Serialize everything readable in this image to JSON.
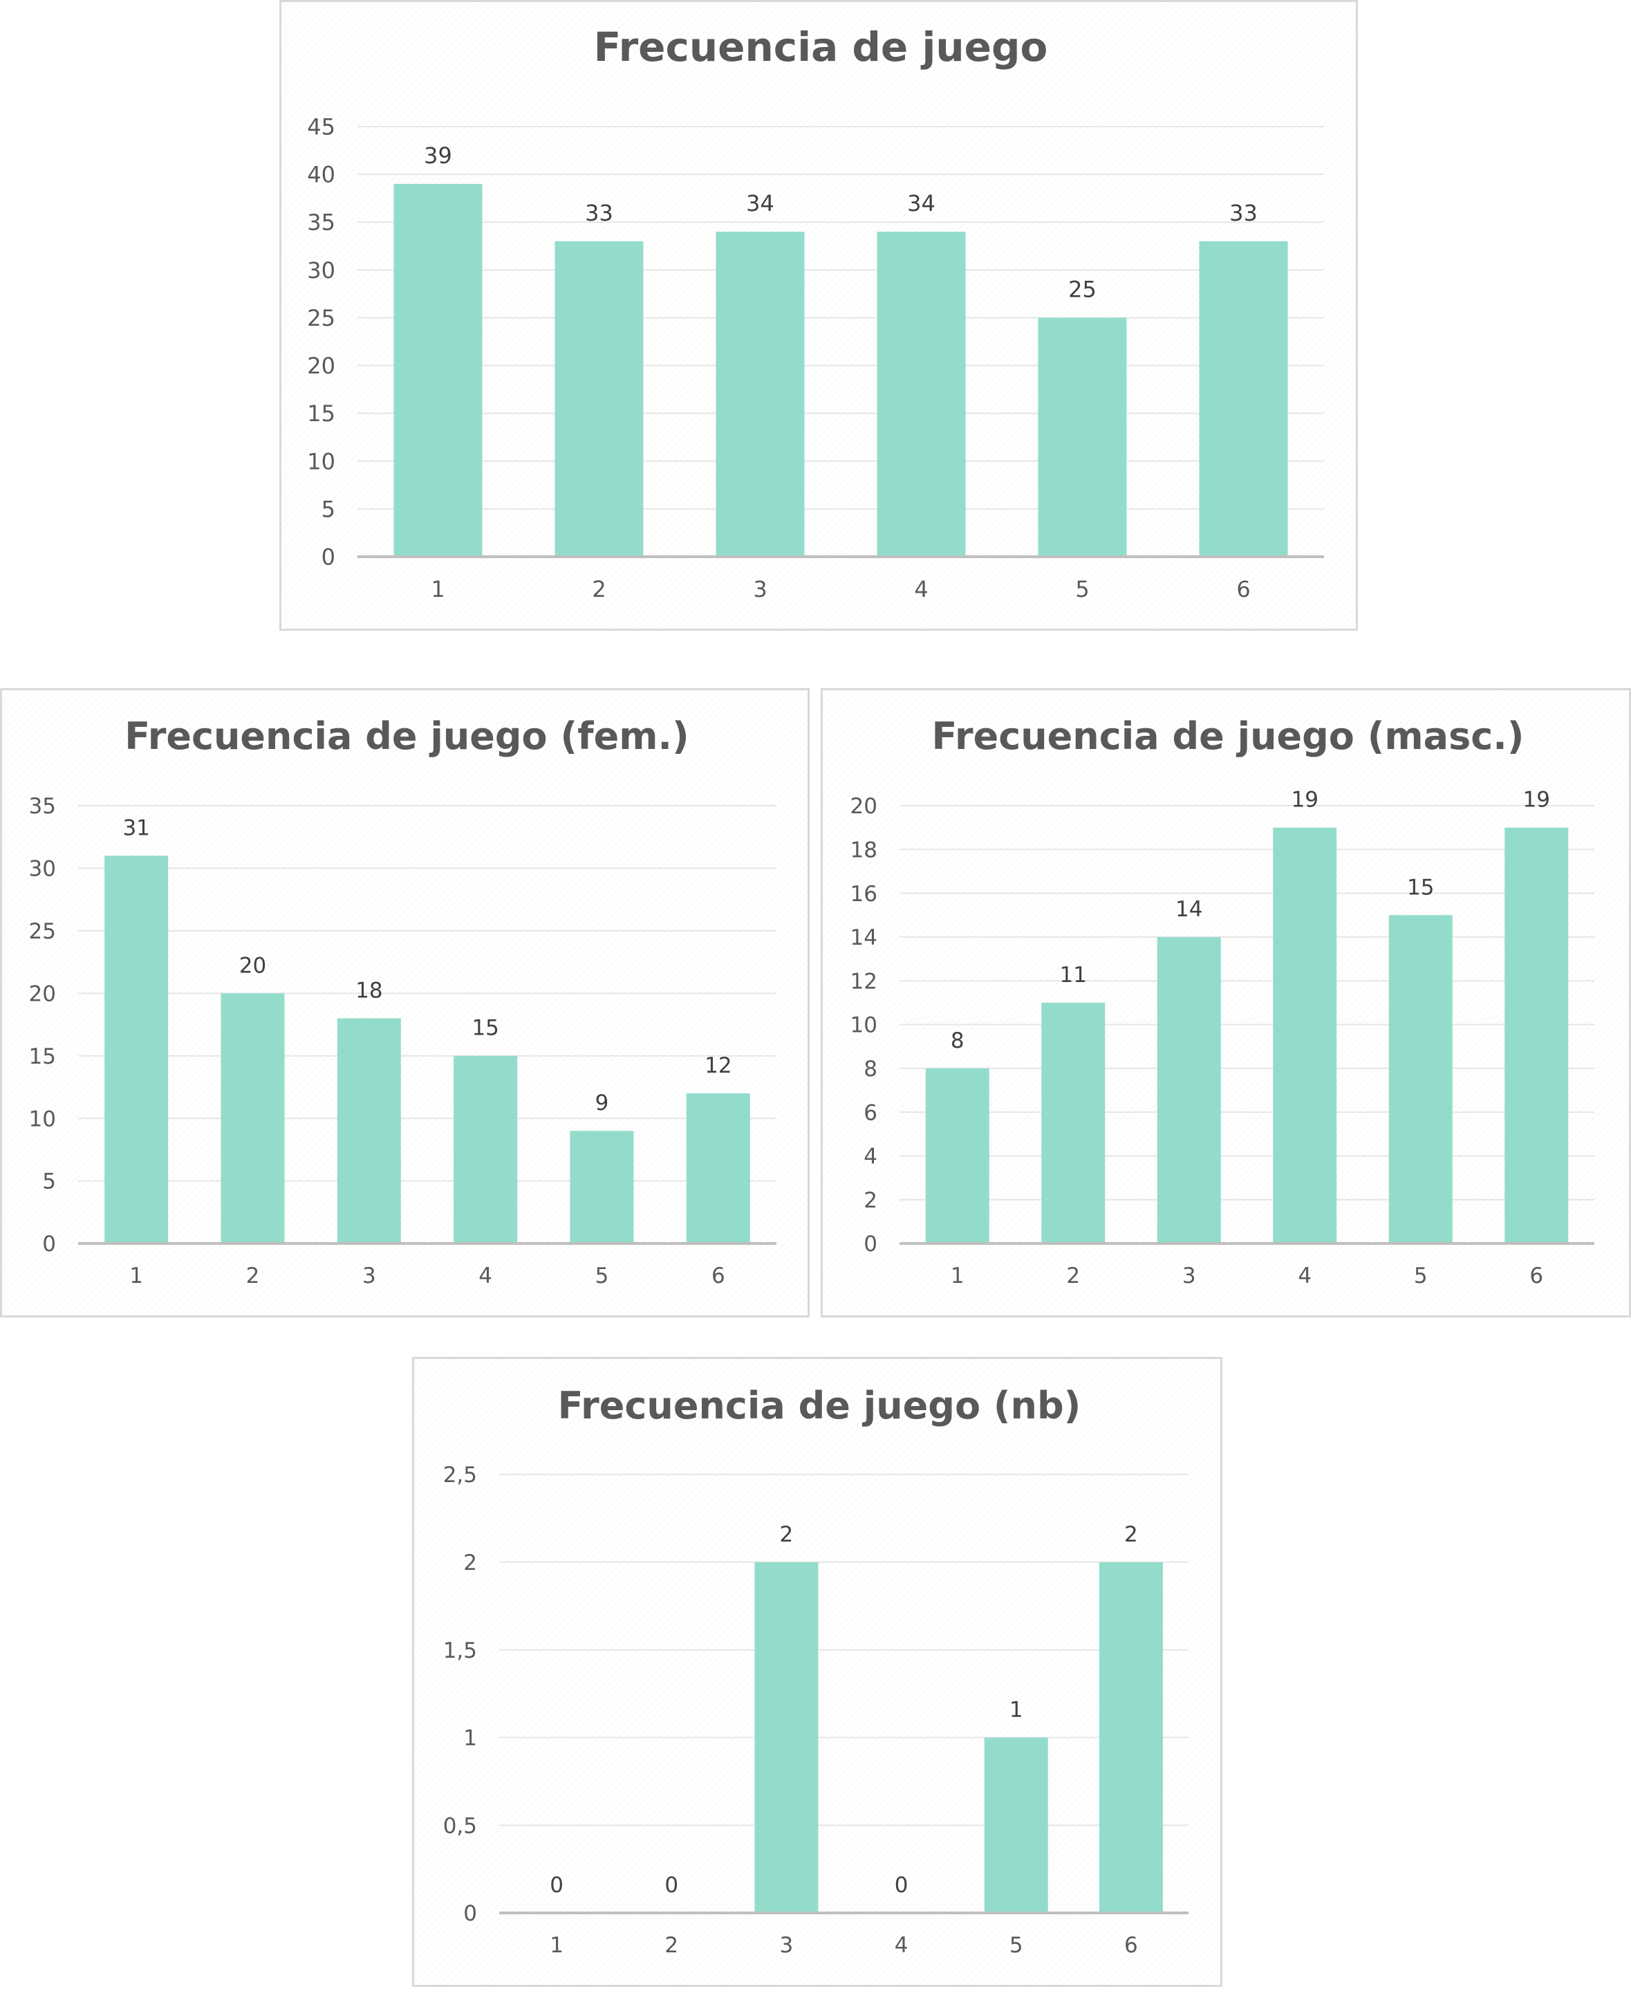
{
  "colors": {
    "bar": "#93dccb",
    "title": "#595959",
    "tick": "#595959",
    "label": "#404040"
  },
  "chart_data": [
    {
      "type": "bar",
      "title": "Frecuencia de juego",
      "categories": [
        "1",
        "2",
        "3",
        "4",
        "5",
        "6"
      ],
      "values": [
        39,
        33,
        34,
        34,
        25,
        33
      ],
      "data_labels": [
        "39",
        "33",
        "34",
        "34",
        "25",
        "33"
      ],
      "yticks": [
        "0",
        "5",
        "10",
        "15",
        "20",
        "25",
        "30",
        "35",
        "40",
        "45"
      ],
      "ylim": [
        0,
        45
      ],
      "grid": true,
      "legend": "none"
    },
    {
      "type": "bar",
      "title": "Frecuencia de juego (fem.)",
      "categories": [
        "1",
        "2",
        "3",
        "4",
        "5",
        "6"
      ],
      "values": [
        31,
        20,
        18,
        15,
        9,
        12
      ],
      "data_labels": [
        "31",
        "20",
        "18",
        "15",
        "9",
        "12"
      ],
      "yticks": [
        "0",
        "5",
        "10",
        "15",
        "20",
        "25",
        "30",
        "35"
      ],
      "ylim": [
        0,
        35
      ],
      "grid": true,
      "legend": "none"
    },
    {
      "type": "bar",
      "title": "Frecuencia de juego (masc.)",
      "categories": [
        "1",
        "2",
        "3",
        "4",
        "5",
        "6"
      ],
      "values": [
        8,
        11,
        14,
        19,
        15,
        19
      ],
      "data_labels": [
        "8",
        "11",
        "14",
        "19",
        "15",
        "19"
      ],
      "yticks": [
        "0",
        "2",
        "4",
        "6",
        "8",
        "10",
        "12",
        "14",
        "16",
        "18",
        "20"
      ],
      "ylim": [
        0,
        20
      ],
      "grid": true,
      "legend": "none"
    },
    {
      "type": "bar",
      "title": "Frecuencia de juego (nb)",
      "categories": [
        "1",
        "2",
        "3",
        "4",
        "5",
        "6"
      ],
      "values": [
        0,
        0,
        2,
        0,
        1,
        2
      ],
      "data_labels": [
        "0",
        "0",
        "2",
        "0",
        "1",
        "2"
      ],
      "yticks": [
        "0",
        "0,5",
        "1",
        "1,5",
        "2",
        "2,5"
      ],
      "ylim": [
        0,
        2.5
      ],
      "grid": true,
      "legend": "none"
    }
  ]
}
